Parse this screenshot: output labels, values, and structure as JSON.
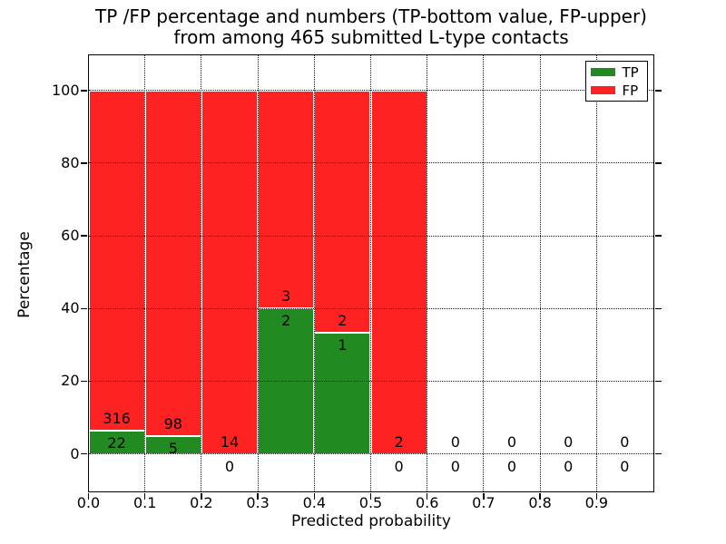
{
  "figure": {
    "title_line1": "TP /FP percentage and numbers (TP-bottom value, FP-upper)",
    "title_line2": "from among 465 submitted L-type contacts"
  },
  "chart_data": {
    "type": "bar",
    "stacked": true,
    "title": "TP /FP percentage and numbers (TP-bottom value, FP-upper)\nfrom among 465 submitted L-type contacts",
    "xlabel": "Predicted probability",
    "ylabel": "Percentage",
    "total_submitted_contacts": 465,
    "xlim": [
      0.0,
      1.0
    ],
    "ylim": [
      -10.2,
      109.8
    ],
    "grid": true,
    "x_ticks": [
      {
        "value": 0.0,
        "label": "0.0"
      },
      {
        "value": 0.1,
        "label": "0.1"
      },
      {
        "value": 0.2,
        "label": "0.2"
      },
      {
        "value": 0.3,
        "label": "0.3"
      },
      {
        "value": 0.4,
        "label": "0.4"
      },
      {
        "value": 0.5,
        "label": "0.5"
      },
      {
        "value": 0.6,
        "label": "0.6"
      },
      {
        "value": 0.7,
        "label": "0.7"
      },
      {
        "value": 0.8,
        "label": "0.8"
      },
      {
        "value": 0.9,
        "label": "0.9"
      }
    ],
    "y_ticks": [
      {
        "value": 0,
        "label": "0"
      },
      {
        "value": 20,
        "label": "20"
      },
      {
        "value": 40,
        "label": "40"
      },
      {
        "value": 60,
        "label": "60"
      },
      {
        "value": 80,
        "label": "80"
      },
      {
        "value": 100,
        "label": "100"
      }
    ],
    "colors": {
      "tp": "#218a21",
      "fp": "#ff2222"
    },
    "legend": {
      "position": "upper right",
      "entries": [
        {
          "label": "TP",
          "color": "#218a21"
        },
        {
          "label": "FP",
          "color": "#ff2222"
        }
      ]
    },
    "bins": [
      {
        "range": [
          0.0,
          0.1
        ],
        "tp_count": 22,
        "fp_count": 316,
        "tp_pct": 6.51,
        "total_pct": 100
      },
      {
        "range": [
          0.1,
          0.2
        ],
        "tp_count": 5,
        "fp_count": 98,
        "tp_pct": 4.85,
        "total_pct": 100
      },
      {
        "range": [
          0.2,
          0.3
        ],
        "tp_count": 0,
        "fp_count": 14,
        "tp_pct": 0,
        "total_pct": 100
      },
      {
        "range": [
          0.3,
          0.4
        ],
        "tp_count": 2,
        "fp_count": 3,
        "tp_pct": 40.0,
        "total_pct": 100
      },
      {
        "range": [
          0.4,
          0.5
        ],
        "tp_count": 1,
        "fp_count": 2,
        "tp_pct": 33.33,
        "total_pct": 100
      },
      {
        "range": [
          0.5,
          0.6
        ],
        "tp_count": 0,
        "fp_count": 2,
        "tp_pct": 0,
        "total_pct": 100
      },
      {
        "range": [
          0.6,
          0.7
        ],
        "tp_count": 0,
        "fp_count": 0,
        "tp_pct": 0,
        "total_pct": 0
      },
      {
        "range": [
          0.7,
          0.8
        ],
        "tp_count": 0,
        "fp_count": 0,
        "tp_pct": 0,
        "total_pct": 0
      },
      {
        "range": [
          0.8,
          0.9
        ],
        "tp_count": 0,
        "fp_count": 0,
        "tp_pct": 0,
        "total_pct": 0
      },
      {
        "range": [
          0.9,
          1.0
        ],
        "tp_count": 0,
        "fp_count": 0,
        "tp_pct": 0,
        "total_pct": 0
      }
    ]
  }
}
